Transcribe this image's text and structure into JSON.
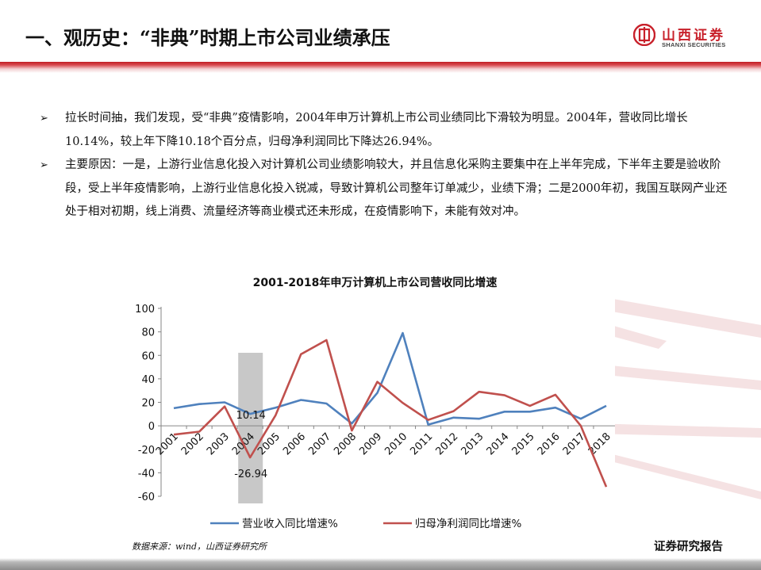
{
  "slide": {
    "title": "一、观历史：“非典”时期上市公司业绩承压",
    "logo_cn": "山西证券",
    "logo_en": "SHANXI SECURITIES",
    "bullet_marker": "➢",
    "bullets": [
      "拉长时间抽，我们发现，受“非典”疫情影响，2004年申万计算机上市公司业绩同比下滑较为明显。2004年，营收同比增长10.14%，较上年下降10.18个百分点，归母净利润同比下降达26.94%。",
      "主要原因：一是，上游行业信息化投入对计算机公司业绩影响较大，并且信息化采购主要集中在上半年完成，下半年主要是验收阶段，受上半年疫情影响，上游行业信息化投入锐减，导致计算机公司整年订单减少，业绩下滑；二是2000年初，我国互联网产业还处于相对初期，线上消费、流量经济等商业模式还未形成，在疫情影响下，未能有效对冲。"
    ],
    "source": "数据来源：wind，山西证券研究所",
    "report_label": "证券研究报告",
    "colors": {
      "brand_red": "#c8202a",
      "revenue_line": "#4f81bd",
      "profit_line": "#c0504d",
      "highlight_bar": "#c8c8c8"
    }
  },
  "chart_data": {
    "type": "line",
    "title": "2001-2018年申万计算机上市公司营收同比增速",
    "categories": [
      "2001",
      "2002",
      "2003",
      "2004",
      "2005",
      "2006",
      "2007",
      "2008",
      "2009",
      "2010",
      "2011",
      "2012",
      "2013",
      "2014",
      "2015",
      "2016",
      "2017",
      "2018"
    ],
    "series": [
      {
        "name": "营业收入同比增速%",
        "color": "#4f81bd",
        "values": [
          15,
          18.5,
          20,
          10.14,
          15.5,
          22,
          19,
          2,
          28,
          79,
          1,
          7,
          6,
          12,
          12,
          15.5,
          6,
          17
        ]
      },
      {
        "name": "归母净利润同比增速%",
        "color": "#c0504d",
        "values": [
          -7.5,
          -5,
          16.5,
          -26.94,
          9,
          61,
          73,
          -4,
          37.5,
          19.5,
          5,
          12.5,
          29,
          26,
          17,
          26.5,
          0,
          -52
        ]
      }
    ],
    "yticks": [
      100,
      80,
      60,
      40,
      20,
      0,
      -20,
      -40,
      -60
    ],
    "ylim": [
      -60,
      100
    ],
    "highlight": {
      "category": "2004",
      "color": "#c8c8c8"
    },
    "data_labels": [
      {
        "series": 0,
        "category": "2004",
        "text": "10.14"
      },
      {
        "series": 1,
        "category": "2004",
        "text": "-26.94"
      }
    ],
    "legend_position": "bottom",
    "grid": false
  }
}
